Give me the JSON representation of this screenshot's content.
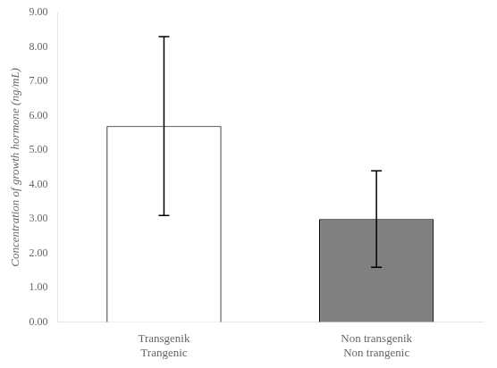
{
  "chart_data": {
    "type": "bar",
    "categories": [
      [
        "Transgenik",
        "Trangenic"
      ],
      [
        "Non transgenik",
        "Non trangenic"
      ]
    ],
    "values": [
      5.7,
      3.0
    ],
    "errors": [
      2.6,
      1.4
    ],
    "colors": [
      "white",
      "#808080"
    ],
    "ylabel": "Concentration of growth hormone (ng/mL)",
    "ylim": [
      0,
      9.0
    ],
    "yticks": [
      {
        "value": 0,
        "label": "0.00"
      },
      {
        "value": 1,
        "label": "1.00"
      },
      {
        "value": 2,
        "label": "2.00"
      },
      {
        "value": 3,
        "label": "3.00"
      },
      {
        "value": 4,
        "label": "4.00"
      },
      {
        "value": 5,
        "label": "5.00"
      },
      {
        "value": 6,
        "label": "6.00"
      },
      {
        "value": 7,
        "label": "7.00"
      },
      {
        "value": 8,
        "label": "8.00"
      },
      {
        "value": 9,
        "label": "9.00"
      }
    ],
    "grid": false
  }
}
